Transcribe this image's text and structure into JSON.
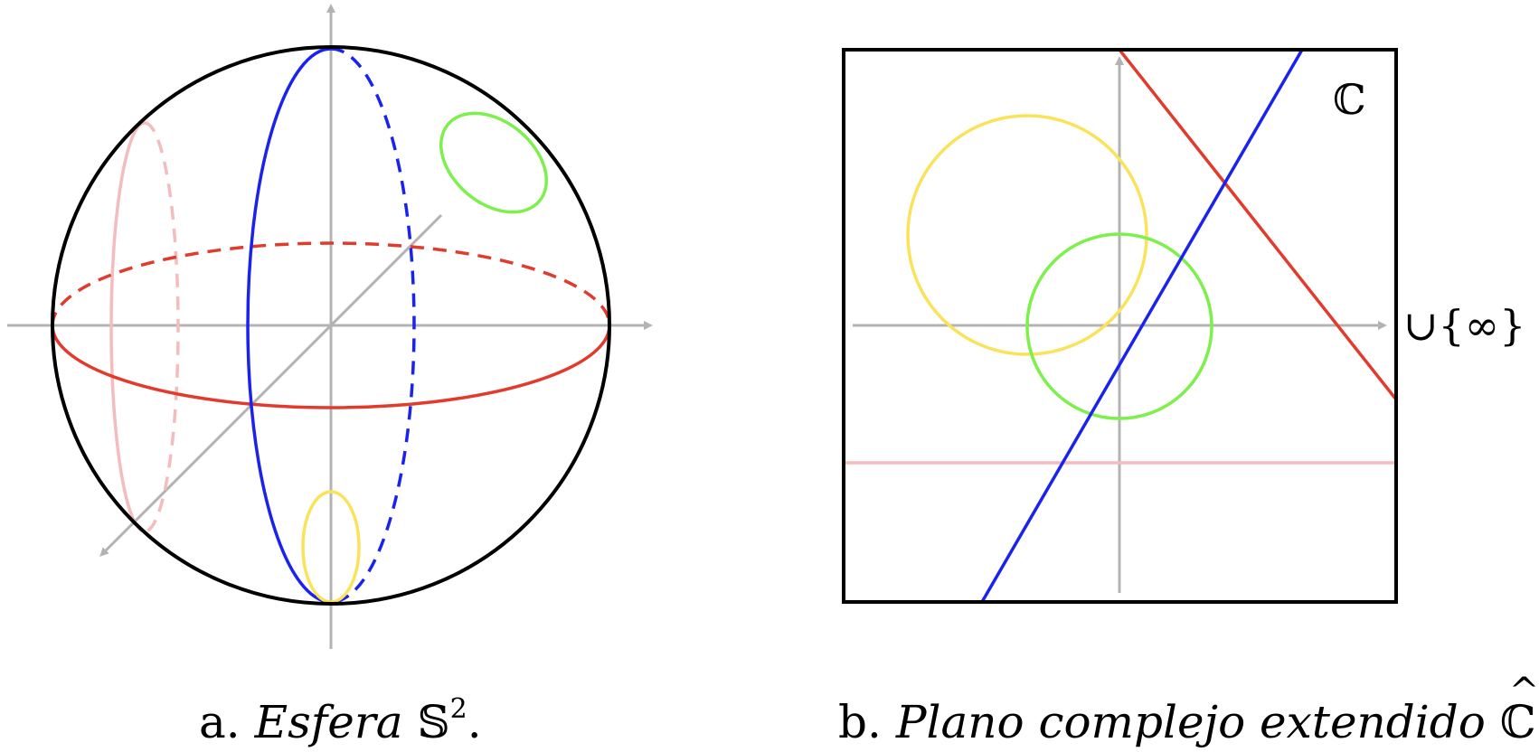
{
  "sphere": {
    "caption_prefix": "a.",
    "caption_title": "Esfera",
    "caption_symbol": "𝕊",
    "caption_sup": "2",
    "caption_end": "."
  },
  "plane": {
    "caption_prefix": "b.",
    "caption_title": "Plano complejo extendido",
    "caption_symbol": "ℂ",
    "caption_end": ".",
    "set_label": "ℂ",
    "infinity_label": "∪{∞}"
  },
  "colors": {
    "outline": "#000000",
    "axis": "#b3b3b3",
    "red": "#e23a2c",
    "blue": "#1a22f0",
    "pink": "#f4bcbc",
    "green": "#7ef04c",
    "yellow": "#fae35a"
  }
}
